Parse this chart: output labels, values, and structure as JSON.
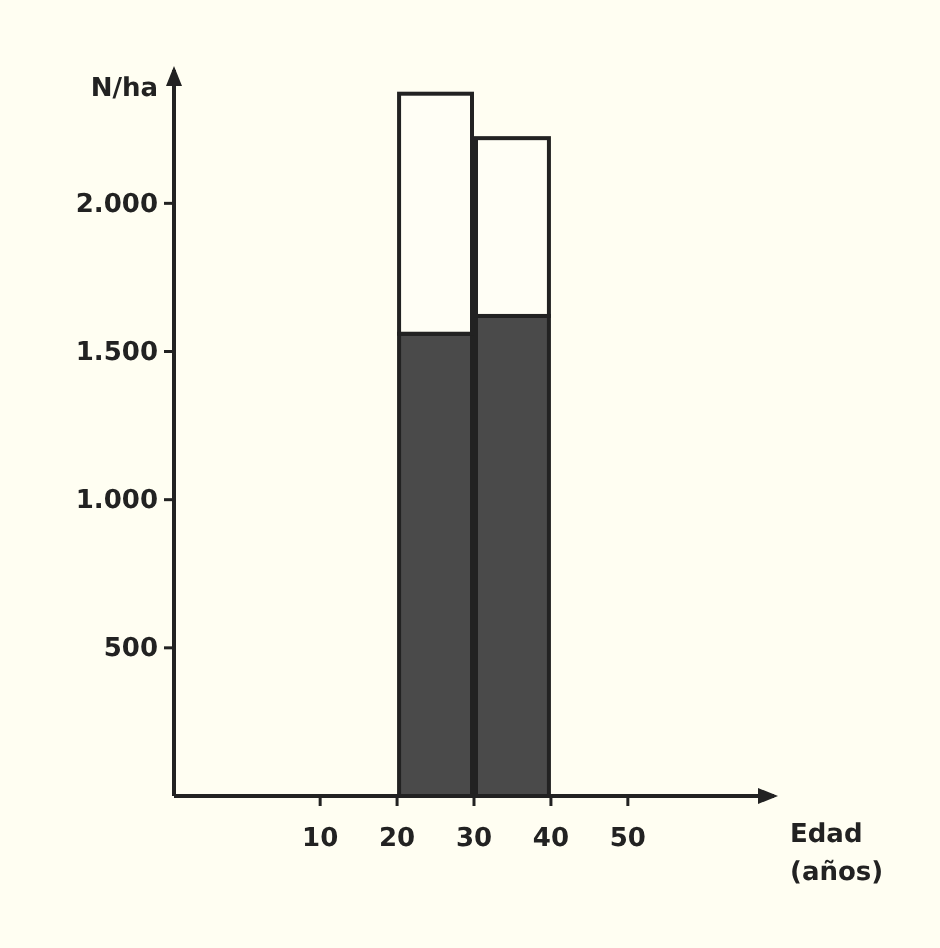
{
  "chart_data": {
    "type": "bar",
    "xlabel": "Edad (años)",
    "ylabel": "N/ha",
    "x": [
      25,
      35
    ],
    "stacked": true,
    "series": [
      {
        "color": "#4a4a4a",
        "values": [
          1560,
          1620
        ]
      },
      {
        "color": "#fffef5",
        "values": [
          810,
          600
        ]
      }
    ],
    "xlim": [
      -9,
      69
    ],
    "xticks": [
      10,
      20,
      30,
      40,
      50
    ],
    "ylim": [
      0,
      2450
    ],
    "yticks": [
      {
        "value": 500,
        "label": "500"
      },
      {
        "value": 1000,
        "label": "1.000"
      },
      {
        "value": 1500,
        "label": "1.500"
      },
      {
        "value": 2000,
        "label": "2.000"
      }
    ]
  }
}
